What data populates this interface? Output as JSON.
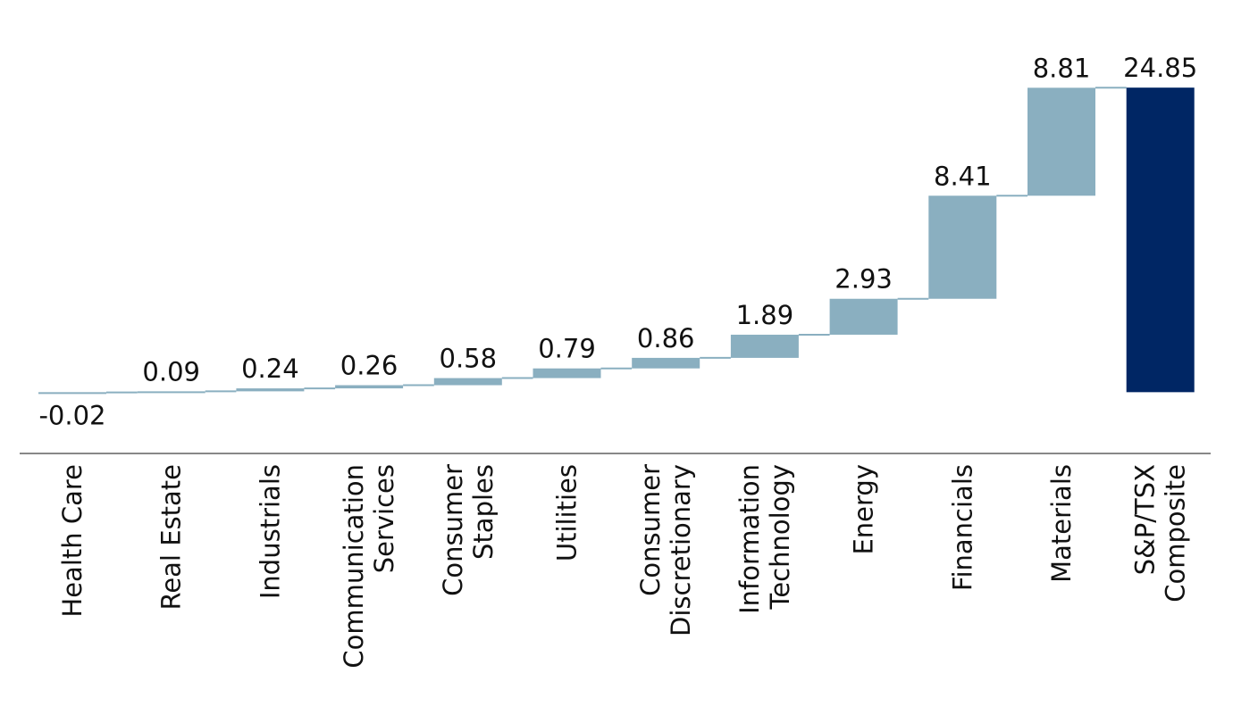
{
  "chart_data": {
    "type": "waterfall",
    "title": "",
    "xlabel": "",
    "ylabel": "",
    "ylim": [
      -5,
      32
    ],
    "grid": false,
    "categories": [
      [
        "Health Care"
      ],
      [
        "Real Estate"
      ],
      [
        "Industrials"
      ],
      [
        "Communication",
        "Services"
      ],
      [
        "Consumer",
        "Staples"
      ],
      [
        "Utilities"
      ],
      [
        "Consumer",
        "Discretionary"
      ],
      [
        "Information",
        "Technology"
      ],
      [
        "Energy"
      ],
      [
        "Financials"
      ],
      [
        "Materials"
      ],
      [
        "S&P/TSX",
        "Composite"
      ]
    ],
    "values": [
      -0.02,
      0.09,
      0.24,
      0.26,
      0.58,
      0.79,
      0.86,
      1.89,
      2.93,
      8.41,
      8.81,
      24.85
    ],
    "labels": [
      "-0.02",
      "0.09",
      "0.24",
      "0.26",
      "0.58",
      "0.79",
      "0.86",
      "1.89",
      "2.93",
      "8.41",
      "8.81",
      "24.85"
    ],
    "total_index": 11,
    "colors": {
      "increment": "#8aafc0",
      "total": "#002664",
      "connector": "#8aafc0",
      "axis": "#888888"
    }
  }
}
